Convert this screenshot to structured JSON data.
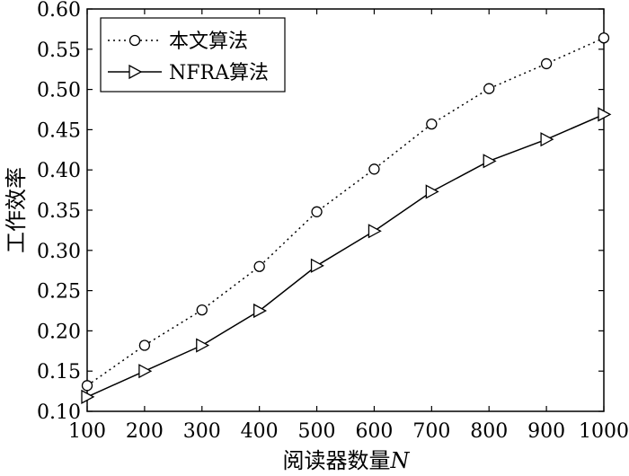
{
  "chart_data": {
    "type": "line",
    "x": [
      100,
      200,
      300,
      400,
      500,
      600,
      700,
      800,
      900,
      1000
    ],
    "xlabel": "阅读器数量",
    "xlabel_var": "N",
    "ylabel": "工作效率",
    "xlim": [
      100,
      1000
    ],
    "ylim": [
      0.1,
      0.6
    ],
    "xticks": [
      "100",
      "200",
      "300",
      "400",
      "500",
      "600",
      "700",
      "800",
      "900",
      "1000"
    ],
    "yticks": [
      "0.10",
      "0.15",
      "0.20",
      "0.25",
      "0.30",
      "0.35",
      "0.40",
      "0.45",
      "0.50",
      "0.55",
      "0.60"
    ],
    "grid": false,
    "legend_position": "top-left",
    "series": [
      {
        "name": "本文算法",
        "marker": "circle",
        "line_style": "dotted",
        "values": [
          0.132,
          0.182,
          0.226,
          0.28,
          0.348,
          0.401,
          0.457,
          0.501,
          0.532,
          0.564
        ]
      },
      {
        "name": "NFRA算法",
        "marker": "triangle-right",
        "line_style": "solid",
        "values": [
          0.118,
          0.15,
          0.182,
          0.225,
          0.281,
          0.324,
          0.373,
          0.411,
          0.438,
          0.469
        ]
      }
    ]
  }
}
